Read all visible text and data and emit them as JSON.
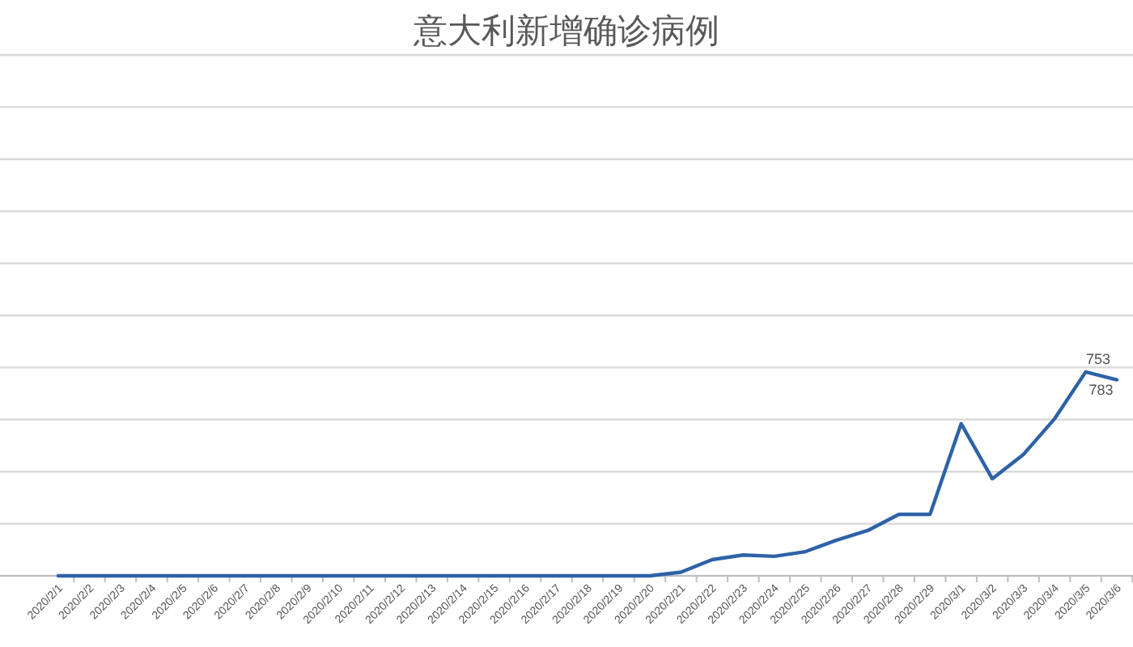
{
  "chart_data": {
    "type": "line",
    "title": "意大利新增确诊病例",
    "categories": [
      "2020/2/1",
      "2020/2/2",
      "2020/2/3",
      "2020/2/4",
      "2020/2/5",
      "2020/2/6",
      "2020/2/7",
      "2020/2/8",
      "2020/2/9",
      "2020/2/10",
      "2020/2/11",
      "2020/2/12",
      "2020/2/13",
      "2020/2/14",
      "2020/2/15",
      "2020/2/16",
      "2020/2/17",
      "2020/2/18",
      "2020/2/19",
      "2020/2/20",
      "2020/2/21",
      "2020/2/22",
      "2020/2/23",
      "2020/2/24",
      "2020/2/25",
      "2020/2/26",
      "2020/2/27",
      "2020/2/28",
      "2020/2/29",
      "2020/3/1",
      "2020/3/2",
      "2020/3/3",
      "2020/3/4",
      "2020/3/5",
      "2020/3/6"
    ],
    "series": [
      {
        "color": "#2e62a8",
        "values": [
          0,
          0,
          0,
          0,
          0,
          0,
          0,
          0,
          0,
          0,
          0,
          0,
          0,
          0,
          0,
          0,
          0,
          0,
          0,
          0,
          14,
          62,
          80,
          75,
          93,
          137,
          174,
          236,
          236,
          584,
          373,
          466,
          603,
          783,
          753
        ],
        "value_labels": [
          null,
          null,
          null,
          null,
          null,
          null,
          null,
          null,
          null,
          null,
          null,
          null,
          null,
          null,
          null,
          null,
          null,
          null,
          null,
          null,
          null,
          null,
          null,
          null,
          null,
          null,
          null,
          null,
          null,
          null,
          null,
          null,
          null,
          "783",
          "753"
        ]
      }
    ],
    "ylim": [
      0,
      2000
    ],
    "yticks": [
      {
        "value": 0,
        "label": null
      },
      {
        "value": 200,
        "label": null
      },
      {
        "value": 400,
        "label": null
      },
      {
        "value": 600,
        "label": null
      },
      {
        "value": 800,
        "label": null
      },
      {
        "value": 1000,
        "label": null
      },
      {
        "value": 1200,
        "label": null
      },
      {
        "value": 1400,
        "label": null
      },
      {
        "value": 1600,
        "label": null
      },
      {
        "value": 1800,
        "label": null
      },
      {
        "value": 2000,
        "label": null
      }
    ],
    "grid": "y",
    "tick_labels": "x",
    "marker": "none",
    "line_style": "solid"
  }
}
